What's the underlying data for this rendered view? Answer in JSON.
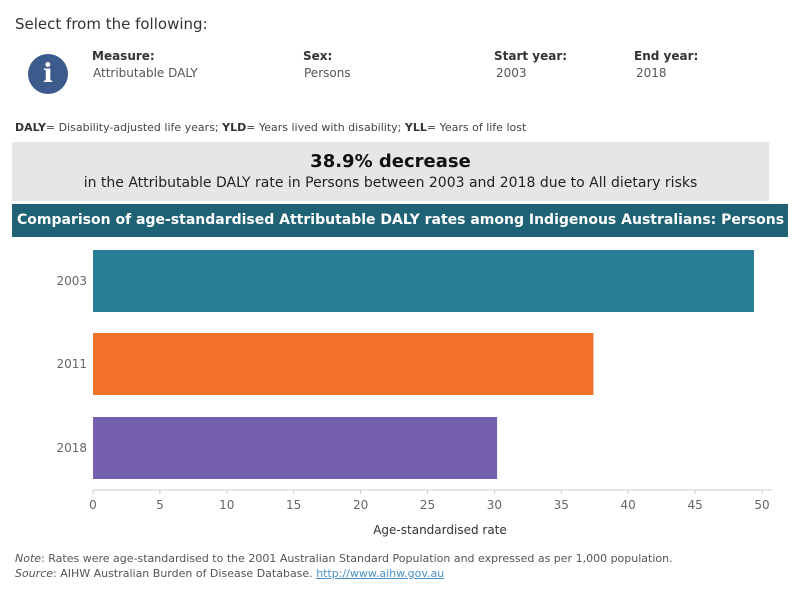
{
  "select_prompt": "Select from the following:",
  "info_icon": {
    "glyph": "i",
    "name": "info-icon",
    "color": "#3d5a8c"
  },
  "filters": {
    "measure": {
      "label": "Measure:",
      "value": "Attributable DALY"
    },
    "sex": {
      "label": "Sex:",
      "value": "Persons"
    },
    "start_year": {
      "label": "Start year:",
      "value": "2003"
    },
    "end_year": {
      "label": "End year:",
      "value": "2018"
    }
  },
  "abbreviations": {
    "daly_key": "DALY",
    "daly_text": "= Disability-adjusted life years; ",
    "yld_key": "YLD",
    "yld_text": "= Years lived with disability; ",
    "yll_key": "YLL",
    "yll_text": "= Years of life lost"
  },
  "summary": {
    "headline": "38.9% decrease",
    "detail": "in the Attributable DALY rate in Persons between 2003 and 2018 due to All dietary risks"
  },
  "chart_header": {
    "title": "Comparison of age-standardised Attributable DALY rates among Indigenous Australians: Persons",
    "background": "#1f6275"
  },
  "chart_data": {
    "type": "bar",
    "orientation": "horizontal",
    "categories": [
      "2003",
      "2011",
      "2018"
    ],
    "values": [
      49.4,
      37.4,
      30.2
    ],
    "colors": [
      "#2a7d96",
      "#f07127",
      "#7560b0"
    ],
    "xlabel": "Age-standardised rate",
    "xlim": [
      0,
      50
    ],
    "xticks": [
      0,
      5,
      10,
      15,
      20,
      25,
      30,
      35,
      40,
      45,
      50
    ],
    "grid": false
  },
  "notes": {
    "note_label": "Note",
    "note_text": ": Rates were age-standardised to the 2001 Australian Standard Population and expressed as per 1,000 population.",
    "source_label": "Source",
    "source_text": ": AIHW Australian Burden of Disease Database. ",
    "source_link": "http://www.aihw.gov.au"
  }
}
